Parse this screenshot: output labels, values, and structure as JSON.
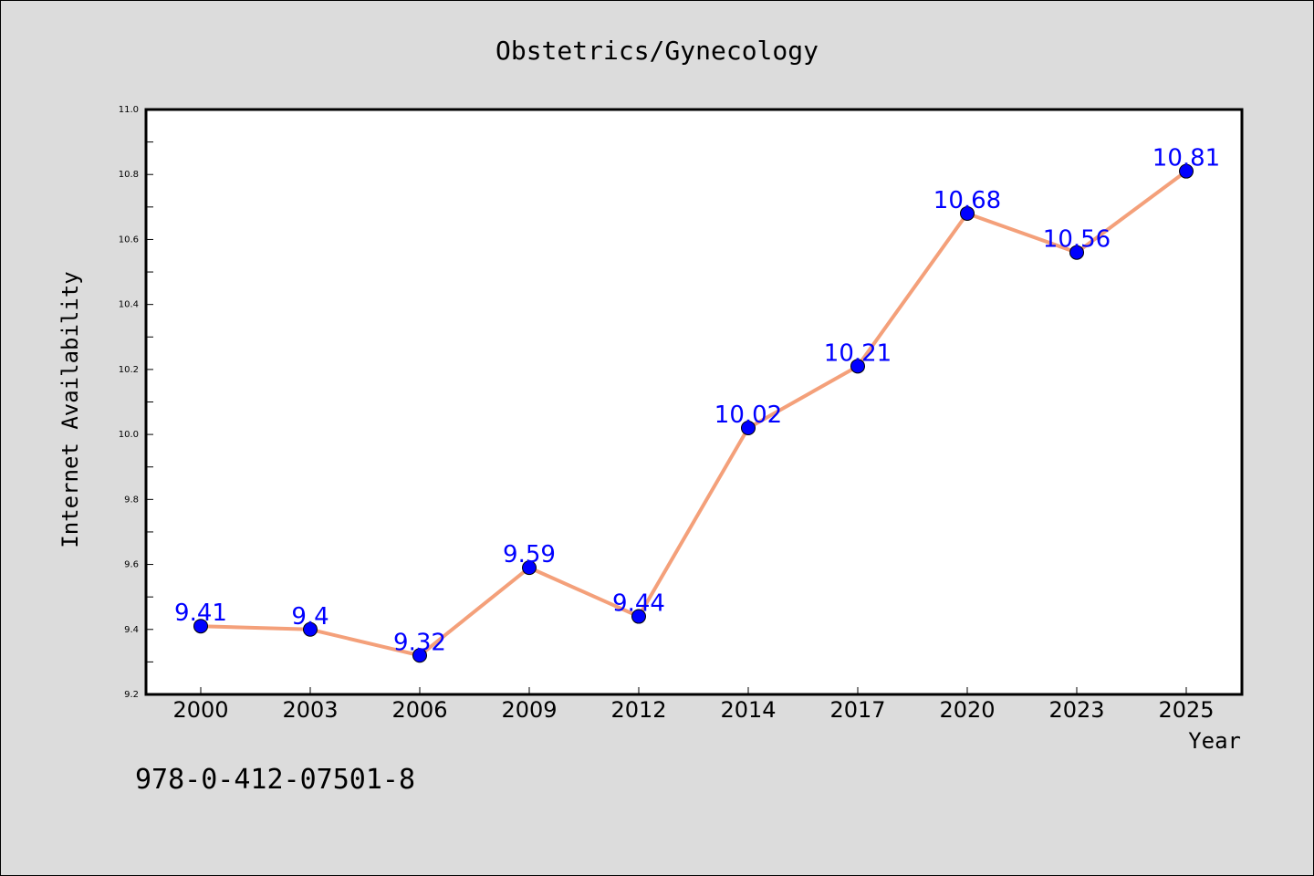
{
  "colors": {
    "background": "#dcdcdc",
    "plot_background": "#ffffff",
    "line": "#f4a07a",
    "marker": "#0000ff",
    "data_label": "#0000ff"
  },
  "footer_code": "978-0-412-07501-8",
  "chart_data": {
    "type": "line",
    "title": "Obstetrics/Gynecology",
    "xlabel": "Year",
    "ylabel": "Internet Availability",
    "categories": [
      "2000",
      "2003",
      "2006",
      "2009",
      "2012",
      "2014",
      "2017",
      "2020",
      "2023",
      "2025"
    ],
    "values": [
      9.41,
      9.4,
      9.32,
      9.59,
      9.44,
      10.02,
      10.21,
      10.68,
      10.56,
      10.81
    ],
    "data_labels": [
      "9.41",
      "9.4",
      "9.32",
      "9.59",
      "9.44",
      "10.02",
      "10.21",
      "10.68",
      "10.56",
      "10.81"
    ],
    "ylim": [
      9.2,
      11.0
    ],
    "yticks": [
      "9.2",
      "9.4",
      "9.6",
      "9.8",
      "10.0",
      "10.2",
      "10.4",
      "10.6",
      "10.8",
      "11.0"
    ],
    "grid": false,
    "legend": "none"
  }
}
